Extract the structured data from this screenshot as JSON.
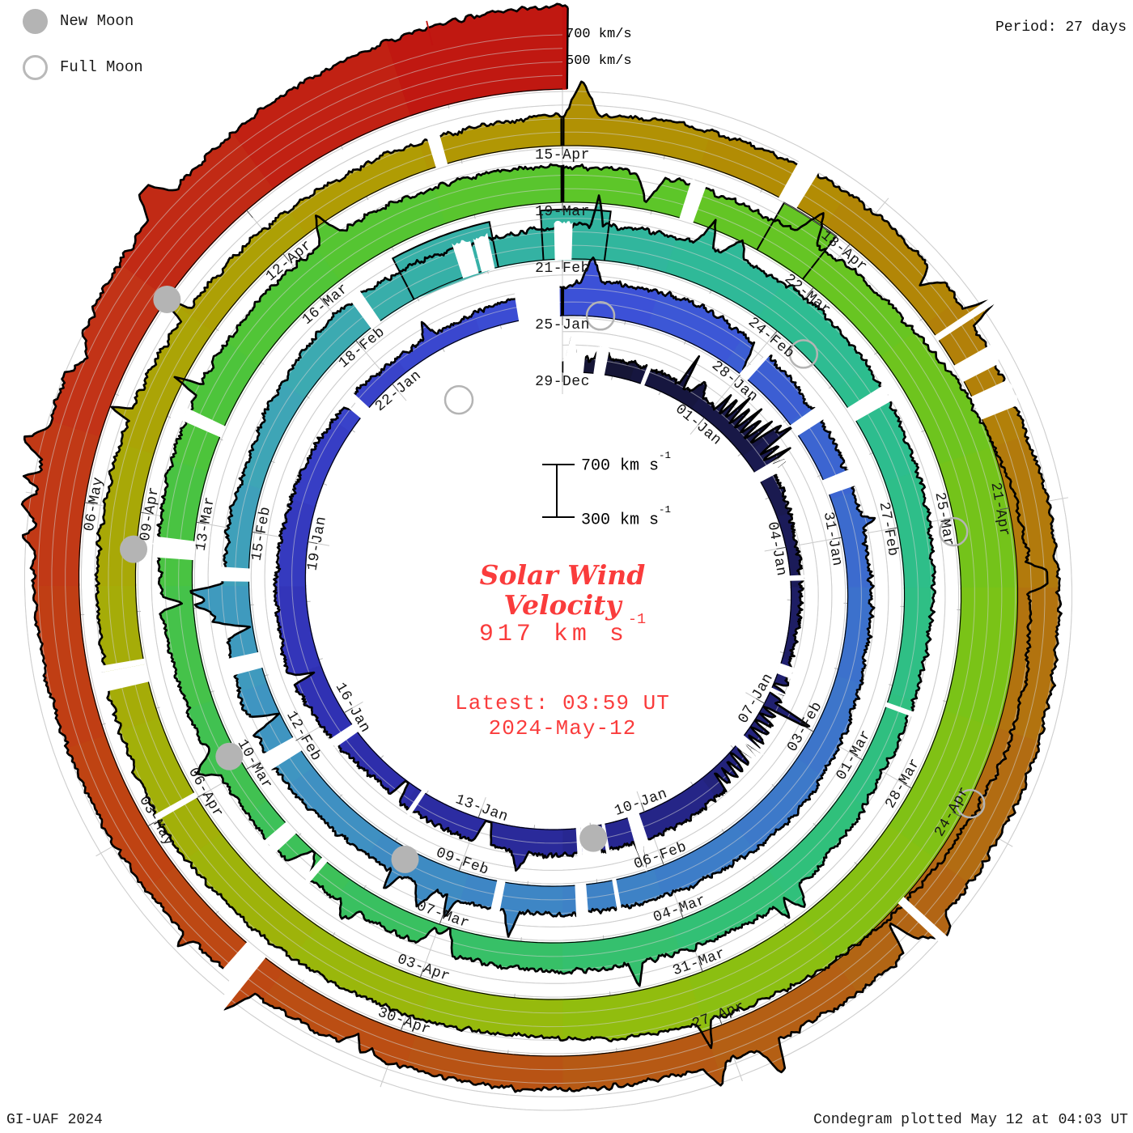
{
  "legend": {
    "new_moon_label": "New Moon",
    "full_moon_label": "Full Moon"
  },
  "period_label": "Period: 27 days",
  "outer_scale": {
    "gridline_700": "700 km/s",
    "gridline_500": "500 km/s"
  },
  "center": {
    "scale_top": "700 km s",
    "scale_bottom": "300 km s",
    "sup": "-1",
    "title_line1": "Solar Wind",
    "title_line2": "Velocity",
    "current_velocity": "917 km s",
    "latest_line1": "Latest: 03:59 UT",
    "latest_line2": "2024-May-12",
    "text_color": "#fa3c3c"
  },
  "footer": {
    "credit": "GI-UAF 2024",
    "plotted": "Condegram plotted May 12 at 04:03 UT"
  },
  "chart_data": {
    "type": "area",
    "layout": "polar-spiral-condegram",
    "title": "Solar Wind Velocity",
    "period_days": 27,
    "rotations": 5,
    "days_total": 135.05,
    "start_label": "29-Dec",
    "end_label": "2024-May-12",
    "latest_velocity_kms": 917,
    "velocity_scale": {
      "baseline_kms": 300,
      "top_ref_kms": 700,
      "gridline_step_kms": 100
    },
    "label_step_days": 3,
    "date_labels": [
      "29-Dec",
      "01-Jan",
      "04-Jan",
      "07-Jan",
      "10-Jan",
      "13-Jan",
      "16-Jan",
      "19-Jan",
      "22-Jan",
      "25-Jan",
      "28-Jan",
      "31-Jan",
      "03-Feb",
      "06-Feb",
      "09-Feb",
      "12-Feb",
      "15-Feb",
      "18-Feb",
      "21-Feb",
      "24-Feb",
      "27-Feb",
      "01-Mar",
      "04-Mar",
      "07-Mar",
      "10-Mar",
      "13-Mar",
      "16-Mar",
      "19-Mar",
      "22-Mar",
      "25-Mar",
      "28-Mar",
      "31-Mar",
      "03-Apr",
      "06-Apr",
      "09-Apr",
      "12-Apr",
      "15-Apr",
      "18-Apr",
      "21-Apr",
      "24-Apr",
      "27-Apr",
      "30-Apr",
      "03-May",
      "06-May"
    ],
    "velocity_profile_kms": [
      [
        0,
        390
      ],
      [
        1.5,
        430
      ],
      [
        3,
        400
      ],
      [
        4.5,
        420
      ],
      [
        6,
        380
      ],
      [
        8,
        360
      ],
      [
        10,
        460
      ],
      [
        12,
        500
      ],
      [
        13.5,
        490
      ],
      [
        15,
        470
      ],
      [
        17,
        440
      ],
      [
        19,
        540
      ],
      [
        21,
        500
      ],
      [
        23,
        450
      ],
      [
        25,
        410
      ],
      [
        26.5,
        480
      ],
      [
        27.5,
        560
      ],
      [
        29,
        575
      ],
      [
        31,
        500
      ],
      [
        33,
        465
      ],
      [
        35,
        480
      ],
      [
        37,
        545
      ],
      [
        39,
        515
      ],
      [
        41,
        505
      ],
      [
        43,
        495
      ],
      [
        45,
        535
      ],
      [
        47,
        485
      ],
      [
        49,
        465
      ],
      [
        51,
        545
      ],
      [
        53,
        515
      ],
      [
        55,
        565
      ],
      [
        57,
        625
      ],
      [
        59,
        565
      ],
      [
        61,
        505
      ],
      [
        63,
        470
      ],
      [
        65,
        545
      ],
      [
        67,
        515
      ],
      [
        69,
        485
      ],
      [
        71,
        470
      ],
      [
        73,
        495
      ],
      [
        75,
        565
      ],
      [
        77,
        595
      ],
      [
        79,
        585
      ],
      [
        81,
        565
      ],
      [
        83,
        545
      ],
      [
        85,
        605
      ],
      [
        87,
        785
      ],
      [
        89,
        835
      ],
      [
        91,
        745
      ],
      [
        93,
        655
      ],
      [
        95,
        575
      ],
      [
        97,
        595
      ],
      [
        99,
        625
      ],
      [
        101,
        585
      ],
      [
        103,
        555
      ],
      [
        105,
        525
      ],
      [
        107,
        505
      ],
      [
        109,
        545
      ],
      [
        111,
        595
      ],
      [
        113,
        565
      ],
      [
        115,
        605
      ],
      [
        117,
        625
      ],
      [
        119,
        575
      ],
      [
        121,
        550
      ],
      [
        123,
        545
      ],
      [
        125,
        560
      ],
      [
        127,
        595
      ],
      [
        129,
        655
      ],
      [
        130.5,
        705
      ],
      [
        132,
        795
      ],
      [
        133.5,
        870
      ],
      [
        135.05,
        917
      ]
    ],
    "color_stops": [
      [
        0,
        "#141432"
      ],
      [
        6,
        "#1b1b58"
      ],
      [
        12,
        "#26268c"
      ],
      [
        18,
        "#3030b2"
      ],
      [
        24,
        "#3a44cc"
      ],
      [
        28,
        "#3c52d8"
      ],
      [
        34,
        "#3c70cc"
      ],
      [
        40,
        "#3e82c6"
      ],
      [
        46,
        "#3f98c0"
      ],
      [
        50,
        "#3ea8b4"
      ],
      [
        54,
        "#32b4a0"
      ],
      [
        58,
        "#2dbd90"
      ],
      [
        64,
        "#30c07c"
      ],
      [
        70,
        "#3ac05e"
      ],
      [
        76,
        "#4cc43c"
      ],
      [
        82,
        "#5ec628"
      ],
      [
        88,
        "#78c318"
      ],
      [
        94,
        "#92bd0e"
      ],
      [
        100,
        "#a4ae08"
      ],
      [
        106,
        "#b09c04"
      ],
      [
        110,
        "#b28c04"
      ],
      [
        114,
        "#b27a0c"
      ],
      [
        118,
        "#b26614"
      ],
      [
        122,
        "#b85414"
      ],
      [
        126,
        "#bf4412"
      ],
      [
        130,
        "#c23517"
      ],
      [
        135.05,
        "#c01310"
      ],
      [
        135.06,
        "#c01310"
      ]
    ],
    "data_gaps_days": [
      [
        0.02,
        0.42
      ],
      [
        12.1,
        12.32
      ],
      [
        13.0,
        13.18
      ],
      [
        26.3,
        26.95
      ],
      [
        40.15,
        40.32
      ]
    ],
    "flat_blocks": [
      {
        "d0": 51.95,
        "d1": 53.15,
        "v": 640
      },
      {
        "d0": 53.75,
        "d1": 54.55,
        "v": 665
      },
      {
        "d0": 83.25,
        "d1": 83.85,
        "v": 700
      }
    ],
    "moon_markers": [
      {
        "type": "new",
        "theta_deg": 173,
        "radius_px": 313
      },
      {
        "type": "new",
        "theta_deg": 210,
        "radius_px": 389
      },
      {
        "type": "new",
        "theta_deg": 243,
        "radius_px": 462
      },
      {
        "type": "new",
        "theta_deg": 275,
        "radius_px": 532
      },
      {
        "type": "new",
        "theta_deg": 306,
        "radius_px": 604
      },
      {
        "type": "full",
        "theta_deg": 8,
        "radius_px": 338
      },
      {
        "type": "full",
        "theta_deg": 46,
        "radius_px": 414
      },
      {
        "type": "full",
        "theta_deg": 82,
        "radius_px": 488
      },
      {
        "type": "full",
        "theta_deg": 118,
        "radius_px": 571
      },
      {
        "type": "full",
        "theta_deg": 331,
        "radius_px": 264
      }
    ],
    "red_spike": {
      "theta_deg": 346.5,
      "r_inner": 688,
      "r_outer": 719
    },
    "grid_color": "#c8c8c8",
    "tick_color": "#b4b4b4",
    "edge_color": "#000000",
    "label_color": "#161616",
    "moon_color": "#b4b4b4"
  }
}
